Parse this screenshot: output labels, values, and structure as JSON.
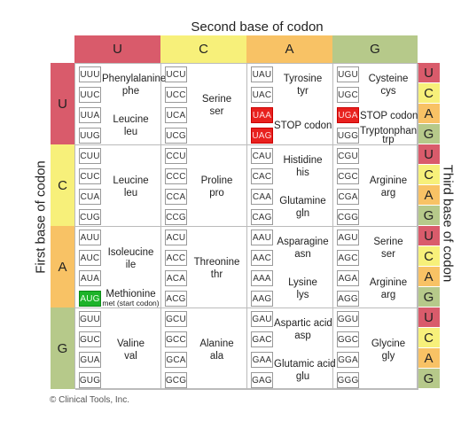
{
  "titles": {
    "second": "Second base of codon",
    "first": "First base of codon",
    "third": "Third base of codon"
  },
  "bases": [
    "U",
    "C",
    "A",
    "G"
  ],
  "colors": {
    "U": "#d95b6b",
    "C": "#f7f07a",
    "A": "#f8c265",
    "G": "#b6c98a"
  },
  "copyright": "© Clinical Tools, Inc.",
  "blocks": [
    [
      {
        "codons": [
          "UUU",
          "UUC",
          "UUA",
          "UUG"
        ],
        "groups": [
          {
            "rows": [
              0,
              1
            ],
            "name": "Phenylalanine",
            "abbr": "phe"
          },
          {
            "rows": [
              2,
              3
            ],
            "name": "Leucine",
            "abbr": "leu"
          }
        ]
      },
      {
        "codons": [
          "UCU",
          "UCC",
          "UCA",
          "UCG"
        ],
        "groups": [
          {
            "rows": [
              0,
              3
            ],
            "name": "Serine",
            "abbr": "ser"
          }
        ]
      },
      {
        "codons": [
          "UAU",
          "UAC",
          "UAA",
          "UAG"
        ],
        "stop": [
          2,
          3
        ],
        "groups": [
          {
            "rows": [
              0,
              1
            ],
            "name": "Tyrosine",
            "abbr": "tyr"
          },
          {
            "rows": [
              2,
              3
            ],
            "name": "STOP codon",
            "abbr": ""
          }
        ]
      },
      {
        "codons": [
          "UGU",
          "UGC",
          "UGA",
          "UGG"
        ],
        "stop": [
          2
        ],
        "groups": [
          {
            "rows": [
              0,
              1
            ],
            "name": "Cysteine",
            "abbr": "cys"
          },
          {
            "rows": [
              2,
              2
            ],
            "name": "STOP codon",
            "abbr": ""
          },
          {
            "rows": [
              3,
              3
            ],
            "name": "Tryptonphan",
            "abbr": "trp"
          }
        ]
      }
    ],
    [
      {
        "codons": [
          "CUU",
          "CUC",
          "CUA",
          "CUG"
        ],
        "groups": [
          {
            "rows": [
              0,
              3
            ],
            "name": "Leucine",
            "abbr": "leu"
          }
        ]
      },
      {
        "codons": [
          "CCU",
          "CCC",
          "CCA",
          "CCG"
        ],
        "groups": [
          {
            "rows": [
              0,
              3
            ],
            "name": "Proline",
            "abbr": "pro"
          }
        ]
      },
      {
        "codons": [
          "CAU",
          "CAC",
          "CAA",
          "CAG"
        ],
        "groups": [
          {
            "rows": [
              0,
              1
            ],
            "name": "Histidine",
            "abbr": "his"
          },
          {
            "rows": [
              2,
              3
            ],
            "name": "Glutamine",
            "abbr": "gln"
          }
        ]
      },
      {
        "codons": [
          "CGU",
          "CGC",
          "CGA",
          "CGG"
        ],
        "groups": [
          {
            "rows": [
              0,
              3
            ],
            "name": "Arginine",
            "abbr": "arg"
          }
        ]
      }
    ],
    [
      {
        "codons": [
          "AUU",
          "AUC",
          "AUA",
          "AUG"
        ],
        "start": [
          3
        ],
        "groups": [
          {
            "rows": [
              0,
              2
            ],
            "name": "Isoleucine",
            "abbr": "ile"
          },
          {
            "rows": [
              3,
              3
            ],
            "name": "Methionine",
            "abbr": "met (start codon)"
          }
        ]
      },
      {
        "codons": [
          "ACU",
          "ACC",
          "ACA",
          "ACG"
        ],
        "groups": [
          {
            "rows": [
              0,
              3
            ],
            "name": "Threonine",
            "abbr": "thr"
          }
        ]
      },
      {
        "codons": [
          "AAU",
          "AAC",
          "AAA",
          "AAG"
        ],
        "groups": [
          {
            "rows": [
              0,
              1
            ],
            "name": "Asparagine",
            "abbr": "asn"
          },
          {
            "rows": [
              2,
              3
            ],
            "name": "Lysine",
            "abbr": "lys"
          }
        ]
      },
      {
        "codons": [
          "AGU",
          "AGC",
          "AGA",
          "AGG"
        ],
        "groups": [
          {
            "rows": [
              0,
              1
            ],
            "name": "Serine",
            "abbr": "ser"
          },
          {
            "rows": [
              2,
              3
            ],
            "name": "Arginine",
            "abbr": "arg"
          }
        ]
      }
    ],
    [
      {
        "codons": [
          "GUU",
          "GUC",
          "GUA",
          "GUG"
        ],
        "groups": [
          {
            "rows": [
              0,
              3
            ],
            "name": "Valine",
            "abbr": "val"
          }
        ]
      },
      {
        "codons": [
          "GCU",
          "GCC",
          "GCA",
          "GCG"
        ],
        "groups": [
          {
            "rows": [
              0,
              3
            ],
            "name": "Alanine",
            "abbr": "ala"
          }
        ]
      },
      {
        "codons": [
          "GAU",
          "GAC",
          "GAA",
          "GAG"
        ],
        "groups": [
          {
            "rows": [
              0,
              1
            ],
            "name": "Aspartic acid",
            "abbr": "asp"
          },
          {
            "rows": [
              2,
              3
            ],
            "name": "Glutamic acid",
            "abbr": "glu"
          }
        ]
      },
      {
        "codons": [
          "GGU",
          "GGC",
          "GGA",
          "GGG"
        ],
        "groups": [
          {
            "rows": [
              0,
              3
            ],
            "name": "Glycine",
            "abbr": "gly"
          }
        ]
      }
    ]
  ]
}
